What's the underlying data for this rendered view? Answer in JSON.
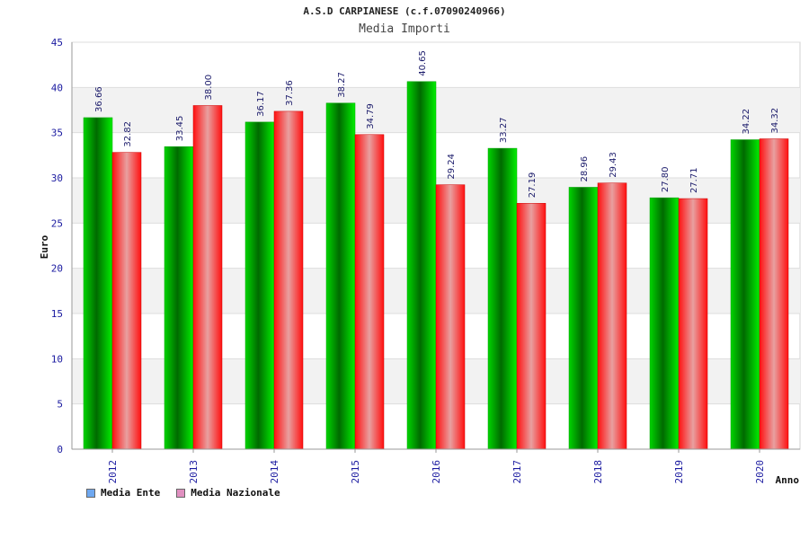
{
  "chart_data": {
    "type": "bar",
    "title": "A.S.D CARPIANESE (c.f.07090240966)",
    "subtitle": "Media Importi",
    "xlabel": "Anno",
    "ylabel": "Euro",
    "ylim": [
      0,
      45
    ],
    "yticks": [
      "0",
      "5",
      "10",
      "15",
      "20",
      "25",
      "30",
      "35",
      "40",
      "45"
    ],
    "grid": true,
    "legend_position": "bottom-left",
    "categories": [
      "2012",
      "2013",
      "2014",
      "2015",
      "2016",
      "2017",
      "2018",
      "2019",
      "2020"
    ],
    "series": [
      {
        "name": "Media Ente",
        "values": [
          36.66,
          33.45,
          36.17,
          38.27,
          40.65,
          33.27,
          28.96,
          27.8,
          34.22
        ],
        "labels": [
          "36.66",
          "33.45",
          "36.17",
          "38.27",
          "40.65",
          "33.27",
          "28.96",
          "27.80",
          "34.22"
        ],
        "color": "#00cc00",
        "legend_color": "#6fa8f0"
      },
      {
        "name": "Media Nazionale",
        "values": [
          32.82,
          38.0,
          37.36,
          34.79,
          29.24,
          27.19,
          29.43,
          27.71,
          34.32
        ],
        "labels": [
          "32.82",
          "38.00",
          "37.36",
          "34.79",
          "29.24",
          "27.19",
          "29.43",
          "27.71",
          "34.32"
        ],
        "color": "#ff2020",
        "legend_color": "#e090c0"
      }
    ]
  }
}
